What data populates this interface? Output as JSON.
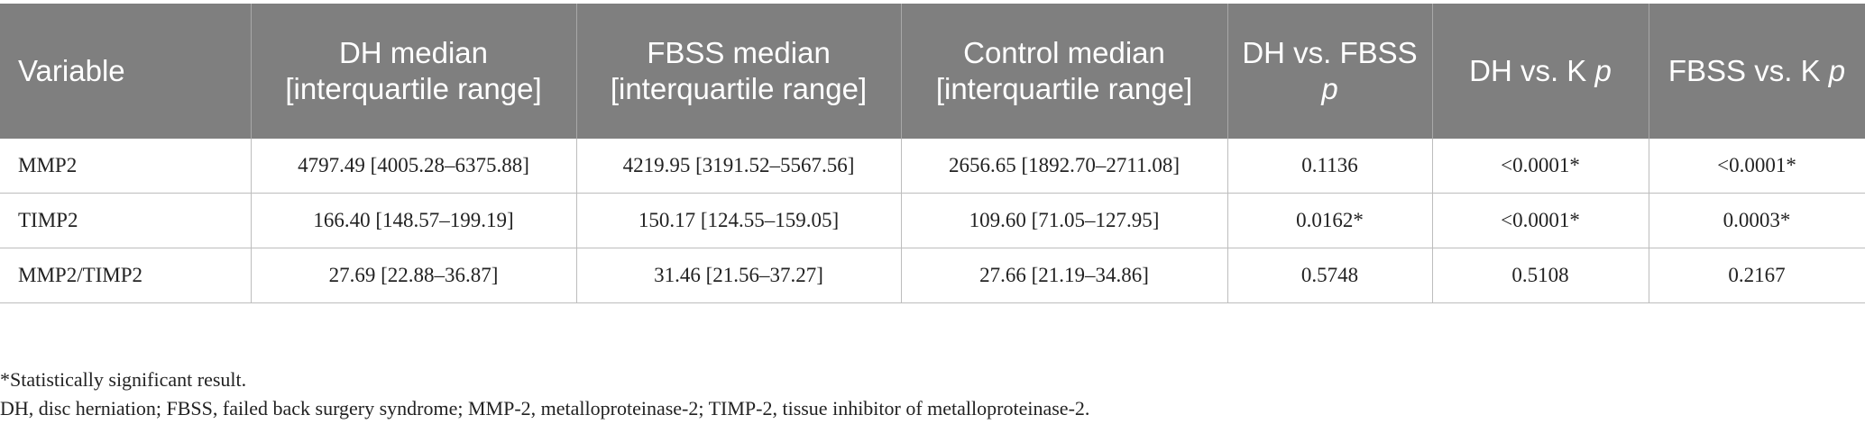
{
  "table": {
    "headers": [
      {
        "text": "Variable",
        "italic_p": ""
      },
      {
        "text": "DH median [interquartile range]",
        "italic_p": ""
      },
      {
        "text": "FBSS median [interquartile range]",
        "italic_p": ""
      },
      {
        "text": "Control median [interquartile range]",
        "italic_p": ""
      },
      {
        "text": "DH vs. FBSS ",
        "italic_p": "p"
      },
      {
        "text": "DH vs. K ",
        "italic_p": "p"
      },
      {
        "text": "FBSS vs. K ",
        "italic_p": "p"
      }
    ],
    "rows": [
      [
        "MMP2",
        "4797.49 [4005.28–6375.88]",
        "4219.95 [3191.52–5567.56]",
        "2656.65 [1892.70–2711.08]",
        "0.1136",
        "<0.0001*",
        "<0.0001*"
      ],
      [
        "TIMP2",
        "166.40 [148.57–199.19]",
        "150.17 [124.55–159.05]",
        "109.60 [71.05–127.95]",
        "0.0162*",
        "<0.0001*",
        "0.0003*"
      ],
      [
        "MMP2/TIMP2",
        "27.69 [22.88–36.87]",
        "31.46 [21.56–37.27]",
        "27.66 [21.19–34.86]",
        "0.5748",
        "0.5108",
        "0.2167"
      ]
    ]
  },
  "footnotes": {
    "significance": "*Statistically significant result.",
    "abbreviations": "DH, disc herniation; FBSS, failed back surgery syndrome; MMP-2, metalloproteinase-2; TIMP-2, tissue inhibitor of metalloproteinase-2."
  },
  "colors": {
    "header_background": "#7f7f7f",
    "header_text": "#ffffff",
    "grid_line": "#bdbdbd",
    "body_text": "#222222"
  }
}
